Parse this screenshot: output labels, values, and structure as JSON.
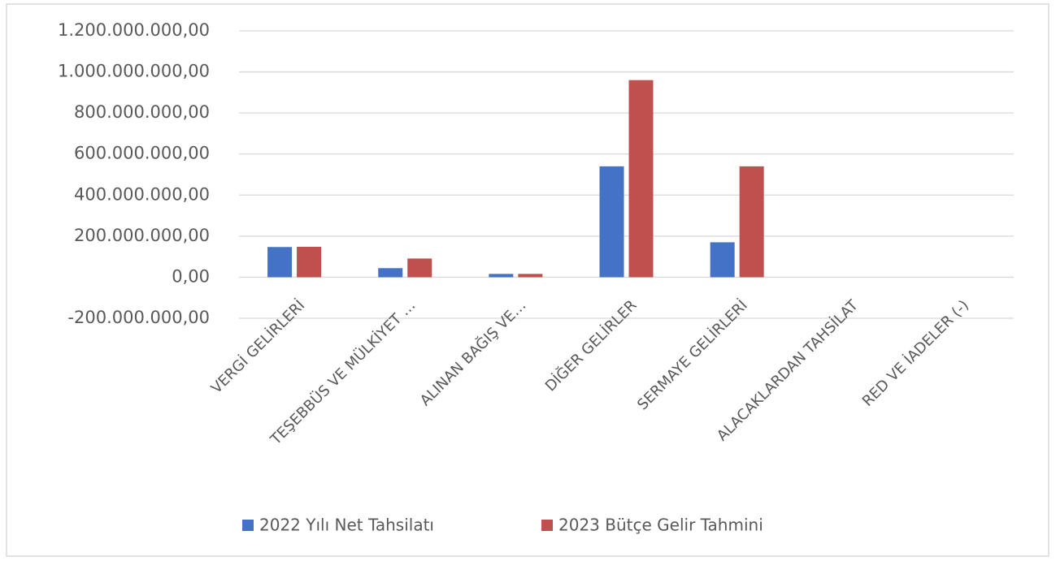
{
  "chart_data": {
    "type": "bar",
    "categories": [
      "VERGİ GELİRLERİ",
      "TEŞEBBÜS VE MÜLKİYET …",
      "ALINAN BAĞIŞ VE…",
      "DİĞER GELİRLER",
      "SERMAYE GELİRLERİ",
      "ALACAKLARDAN TAHSİLAT",
      "RED VE İADELER (-)"
    ],
    "series": [
      {
        "name": "2022 Yılı Net Tahsilatı",
        "color": "#4472c4",
        "values": [
          147000000,
          44000000,
          16000000,
          540000000,
          170000000,
          0,
          0
        ]
      },
      {
        "name": "2023 Bütçe Gelir Tahmini",
        "color": "#c0504d",
        "values": [
          148000000,
          91000000,
          16000000,
          960000000,
          540000000,
          0,
          0
        ]
      }
    ],
    "ylim": [
      -200000000,
      1200000000
    ],
    "yticks": [
      {
        "value": -200000000,
        "label": "-200.000.000,00"
      },
      {
        "value": 0,
        "label": "0,00"
      },
      {
        "value": 200000000,
        "label": "200.000.000,00"
      },
      {
        "value": 400000000,
        "label": "400.000.000,00"
      },
      {
        "value": 600000000,
        "label": "600.000.000,00"
      },
      {
        "value": 800000000,
        "label": "800.000.000,00"
      },
      {
        "value": 1000000000,
        "label": "1.000.000.000,00"
      },
      {
        "value": 1200000000,
        "label": "1.200.000.000,00"
      }
    ],
    "grid": true,
    "legend": "bottom"
  }
}
